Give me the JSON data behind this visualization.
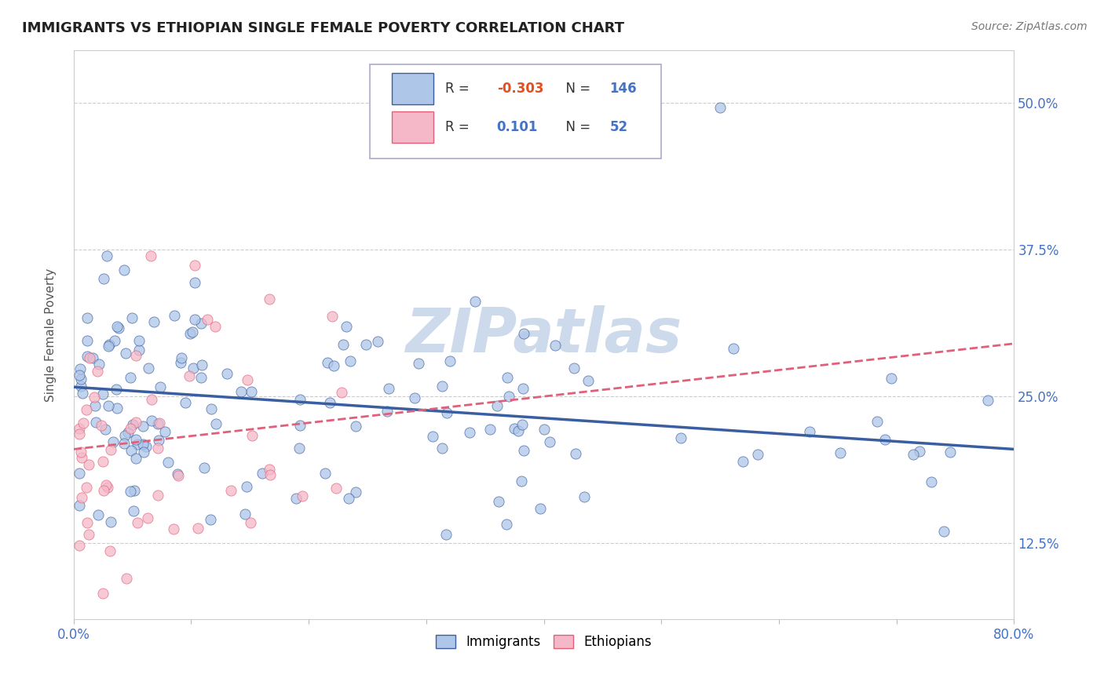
{
  "title": "IMMIGRANTS VS ETHIOPIAN SINGLE FEMALE POVERTY CORRELATION CHART",
  "source": "Source: ZipAtlas.com",
  "ylabel": "Single Female Poverty",
  "xlim": [
    0.0,
    0.8
  ],
  "ylim": [
    0.06,
    0.545
  ],
  "ytick_positions": [
    0.125,
    0.25,
    0.375,
    0.5
  ],
  "ytick_labels": [
    "12.5%",
    "25.0%",
    "37.5%",
    "50.0%"
  ],
  "xtick_positions": [
    0.0,
    0.1,
    0.2,
    0.3,
    0.4,
    0.5,
    0.6,
    0.7,
    0.8
  ],
  "xtick_labels": [
    "0.0%",
    "",
    "",
    "",
    "",
    "",
    "",
    "",
    "80.0%"
  ],
  "legend_R1": "-0.303",
  "legend_N1": "146",
  "legend_R2": "0.101",
  "legend_N2": "52",
  "color_immigrants": "#aec6e8",
  "color_ethiopians": "#f5b8c8",
  "color_line_immigrants": "#3a5fa0",
  "color_line_ethiopians": "#e0607a",
  "watermark": "ZIPatlas",
  "watermark_color": "#ccdaec",
  "grid_color": "#cccccc",
  "title_color": "#222222",
  "source_color": "#777777",
  "ylabel_color": "#555555",
  "tick_label_color": "#4472c4",
  "legend_R_color": "#4472c4",
  "legend_R1_color": "#e05020",
  "imm_line_start_y": 0.258,
  "imm_line_end_y": 0.205,
  "eth_line_start_y": 0.205,
  "eth_line_end_y": 0.295
}
